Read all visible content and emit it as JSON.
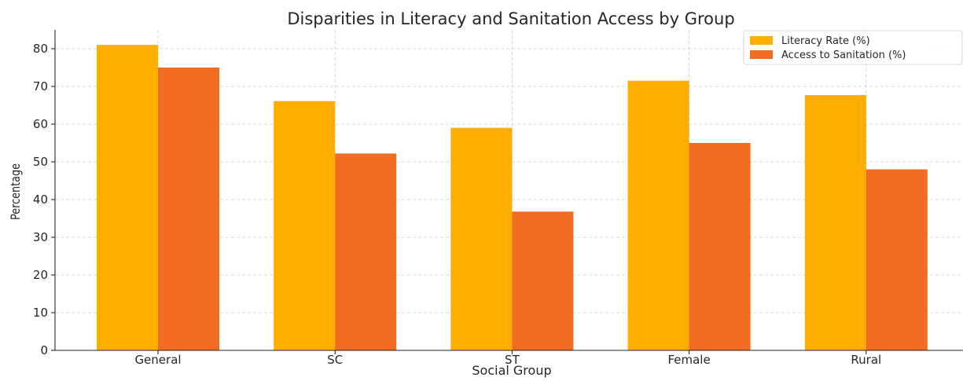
{
  "chart_data": {
    "type": "bar",
    "title": "Disparities in Literacy and Sanitation Access by Group",
    "xlabel": "Social Group",
    "ylabel": "Percentage",
    "categories": [
      "General",
      "SC",
      "ST",
      "Female",
      "Rural"
    ],
    "series": [
      {
        "name": "Literacy Rate (%)",
        "color": "#FFAE00",
        "values": [
          81.0,
          66.1,
          59.0,
          71.5,
          67.7
        ]
      },
      {
        "name": "Access to Sanitation (%)",
        "color": "#F26C23",
        "values": [
          75.0,
          52.2,
          36.8,
          55.0,
          48.0
        ]
      }
    ],
    "ylim": [
      0,
      85
    ],
    "yticks": [
      0,
      10,
      20,
      30,
      40,
      50,
      60,
      70,
      80
    ],
    "grid": true,
    "legend_position": "top-right"
  }
}
